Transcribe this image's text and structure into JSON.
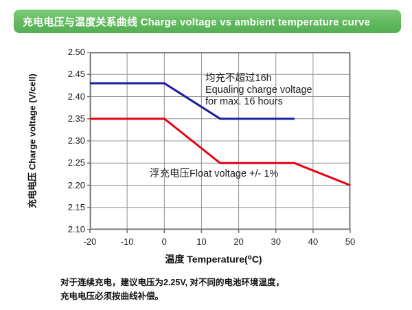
{
  "header": {
    "title": "充电电压与温度关系曲线 Charge voltage vs ambient temperature curve",
    "bar_color": "#60b95e"
  },
  "chart_data": {
    "type": "line",
    "title": "充电电压与温度关系曲线 Charge voltage vs ambient temperature curve",
    "grid": true,
    "x_axis": {
      "label": "温度 Temperature(⁰C)",
      "range": [
        -20,
        50
      ],
      "ticks": [
        -20,
        -10,
        0,
        10,
        20,
        30,
        40,
        50
      ],
      "tick_labels": [
        "-20",
        "-10",
        "0",
        "10",
        "20",
        "30",
        "40",
        "50"
      ]
    },
    "y_axis": {
      "label": "充电电压 Charge voltage (V/cell)",
      "range": [
        2.1,
        2.5
      ],
      "ticks": [
        2.5,
        2.45,
        2.4,
        2.35,
        2.3,
        2.25,
        2.2,
        2.15,
        2.1
      ],
      "tick_labels": [
        "2.50",
        "2.45",
        "2.40",
        "2.35",
        "2.30",
        "2.25",
        "2.20",
        "2.15",
        "2.10"
      ]
    },
    "series": [
      {
        "name": "均充 Equalizing charge voltage",
        "color": "#1b1ba2",
        "points": [
          [
            -20,
            2.43
          ],
          [
            0,
            2.43
          ],
          [
            15,
            2.35
          ],
          [
            35,
            2.35
          ]
        ]
      },
      {
        "name": "浮充 Float voltage",
        "color": "#e60012",
        "points": [
          [
            -20,
            2.35
          ],
          [
            0,
            2.35
          ],
          [
            15,
            2.25
          ],
          [
            35,
            2.25
          ],
          [
            50,
            2.2
          ]
        ]
      }
    ],
    "annotations": [
      {
        "id": "equalize",
        "lines": [
          "均充不超过16h",
          "Equaling charge voltage",
          "for max. 16 hours"
        ]
      },
      {
        "id": "float",
        "lines": [
          "浮充电压Float voltage +/- 1%"
        ]
      }
    ],
    "grid_color": "#909090",
    "border_color": "#6f6f6f"
  },
  "footnote": {
    "line1": "对于连续充电，建议电压为2.25V, 对不同的电池环境温度，",
    "line2": "充电电压必须按曲线补偿。"
  }
}
